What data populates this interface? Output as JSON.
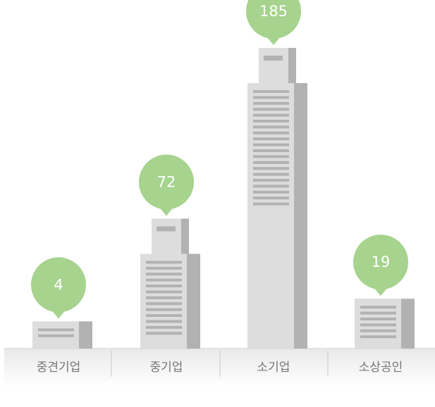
{
  "chart_data": {
    "type": "bar",
    "categories": [
      "중견기업",
      "중기업",
      "소기업",
      "소상공인"
    ],
    "values": [
      4,
      72,
      185,
      19
    ],
    "color": "#a6d38d"
  }
}
